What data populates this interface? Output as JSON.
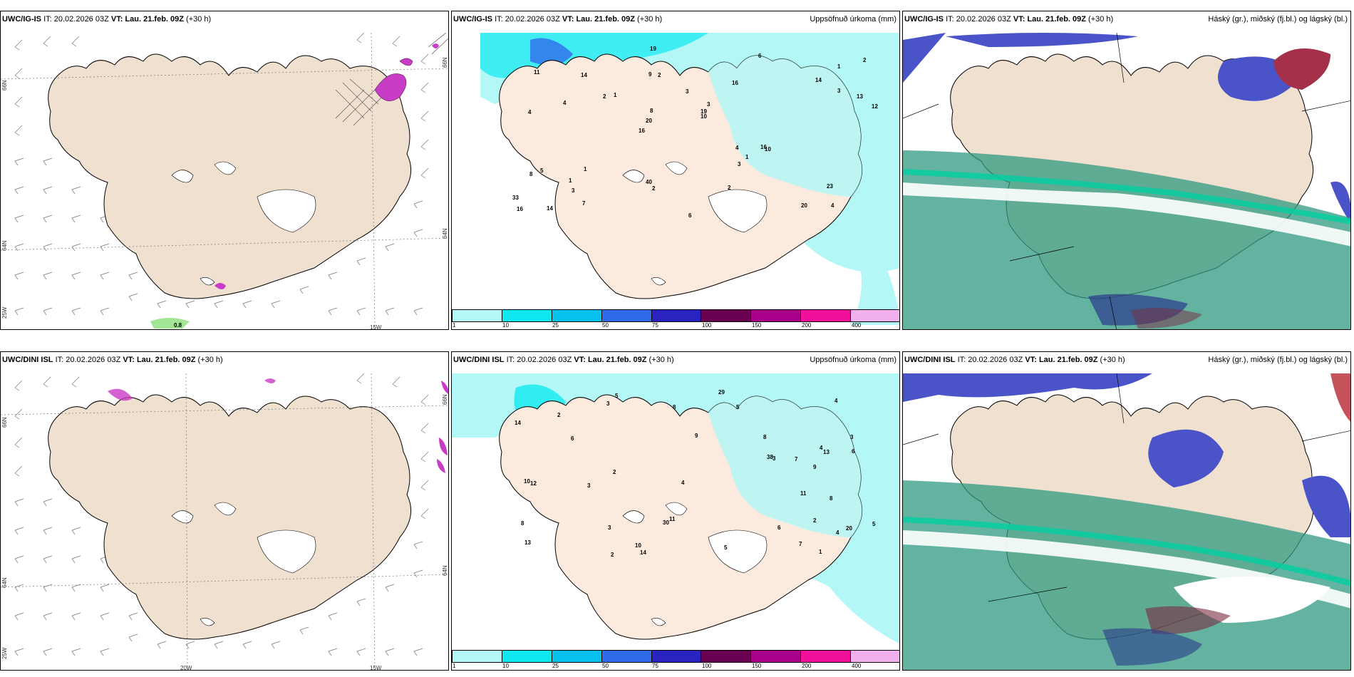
{
  "rows": [
    {
      "model": "UWC/IG-IS",
      "it_label": "IT:",
      "it": "20.02.2026 03Z",
      "vt_label": "VT:",
      "vt": "Lau. 21.feb. 09Z",
      "lead": "(+30 h)"
    },
    {
      "model": "UWC/DINI ISL",
      "it_label": "IT:",
      "it": "20.02.2026 03Z",
      "vt_label": "VT:",
      "vt": "Lau. 21.feb. 09Z",
      "lead": "(+30 h)"
    }
  ],
  "precip_title": "Uppsöfnuð úrkoma (mm)",
  "cloud_title": "Háský (gr.), miðský (fj.bl.) og lágský (bl.)",
  "colorbar": {
    "labels": [
      "1",
      "10",
      "25",
      "50",
      "75",
      "100",
      "150",
      "200",
      "400"
    ],
    "colors": [
      "#b3f7f7",
      "#10e8ef",
      "#08c0ec",
      "#2f6be8",
      "#2a23c0",
      "#6a0050",
      "#a8008a",
      "#f0109a",
      "#f3b0ef"
    ]
  },
  "wind_top": {
    "lat_labels": [
      "66N",
      "64N",
      "25W"
    ],
    "lon_labels": [
      "15W"
    ],
    "right_lat": [
      "66N",
      "64N"
    ],
    "value": "0.8"
  },
  "wind_bottom": {
    "lat_labels": [
      "66N",
      "64N",
      "25W"
    ],
    "lon_labels": [
      "20W",
      "15W"
    ],
    "right_lat": [
      "66N",
      "64N"
    ]
  },
  "precip_top_numbers": [
    "4",
    "4",
    "1",
    "16",
    "16",
    "14",
    "9",
    "3",
    "5",
    "1",
    "33",
    "3",
    "2",
    "3",
    "10",
    "11",
    "19",
    "12",
    "4",
    "3",
    "20",
    "40",
    "8",
    "14",
    "6",
    "1",
    "20",
    "23",
    "16",
    "6",
    "2",
    "4",
    "3",
    "7",
    "13",
    "19",
    "16",
    "2",
    "10",
    "8",
    "14",
    "2",
    "1",
    "2",
    "1"
  ],
  "precip_bottom_numbers": [
    "2",
    "3",
    "20",
    "9",
    "13",
    "5",
    "4",
    "3",
    "4",
    "6",
    "6",
    "14",
    "9",
    "14",
    "8",
    "2",
    "4",
    "3",
    "11",
    "13",
    "10",
    "12",
    "5",
    "38",
    "10",
    "30",
    "29",
    "5",
    "8",
    "5",
    "3",
    "6",
    "2",
    "4",
    "8",
    "7",
    "3",
    "8",
    "1",
    "2",
    "11",
    "7"
  ]
}
